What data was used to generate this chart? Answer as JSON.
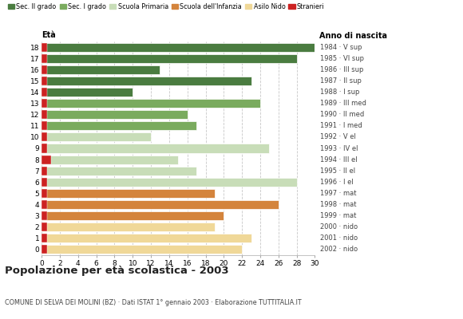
{
  "ages": [
    18,
    17,
    16,
    15,
    14,
    13,
    12,
    11,
    10,
    9,
    8,
    7,
    6,
    5,
    4,
    3,
    2,
    1,
    0
  ],
  "values": [
    30,
    28,
    13,
    23,
    10,
    24,
    16,
    17,
    12,
    25,
    15,
    17,
    28,
    19,
    26,
    20,
    19,
    23,
    22
  ],
  "stranieri_vals": [
    0.6,
    0.6,
    0.6,
    0.6,
    0.6,
    0.6,
    0.6,
    0.6,
    0.6,
    0.6,
    1.0,
    0.6,
    0.6,
    0.6,
    0.6,
    0.6,
    0.6,
    0.6,
    0.6
  ],
  "categories": [
    "Sec. II grado",
    "Sec. I grado",
    "Scuola Primaria",
    "Scuola dell'Infanzia",
    "Asilo Nido",
    "Stranieri"
  ],
  "colors": {
    "Sec. II grado": "#4a7c40",
    "Sec. I grado": "#7aab5e",
    "Scuola Primaria": "#c8ddb8",
    "Scuola dell'Infanzia": "#d4843c",
    "Asilo Nido": "#f0d898",
    "Stranieri": "#cc2222"
  },
  "age_colors": {
    "18": "Sec. II grado",
    "17": "Sec. II grado",
    "16": "Sec. II grado",
    "15": "Sec. II grado",
    "14": "Sec. II grado",
    "13": "Sec. I grado",
    "12": "Sec. I grado",
    "11": "Sec. I grado",
    "10": "Scuola Primaria",
    "9": "Scuola Primaria",
    "8": "Scuola Primaria",
    "7": "Scuola Primaria",
    "6": "Scuola Primaria",
    "5": "Scuola dell'Infanzia",
    "4": "Scuola dell'Infanzia",
    "3": "Scuola dell'Infanzia",
    "2": "Asilo Nido",
    "1": "Asilo Nido",
    "0": "Asilo Nido"
  },
  "right_labels": {
    "18": "1984 · V sup",
    "17": "1985 · VI sup",
    "16": "1986 · III sup",
    "15": "1987 · II sup",
    "14": "1988 · I sup",
    "13": "1989 · III med",
    "12": "1990 · II med",
    "11": "1991 · I med",
    "10": "1992 · V el",
    "9": "1993 · IV el",
    "8": "1994 · III el",
    "7": "1995 · II el",
    "6": "1996 · I el",
    "5": "1997 · mat",
    "4": "1998 · mat",
    "3": "1999 · mat",
    "2": "2000 · nido",
    "1": "2001 · nido",
    "0": "2002 · nido"
  },
  "title": "Popolazione per età scolastica - 2003",
  "subtitle": "COMUNE DI SELVA DEI MOLINI (BZ) · Dati ISTAT 1° gennaio 2003 · Elaborazione TUTTITALIA.IT",
  "xlabel_left": "Età",
  "xlabel_right": "Anno di nascita",
  "xlim": [
    0,
    30
  ],
  "xticks": [
    0,
    2,
    4,
    6,
    8,
    10,
    12,
    14,
    16,
    18,
    20,
    22,
    24,
    26,
    28,
    30
  ],
  "background_color": "#ffffff",
  "grid_color": "#c8c8c8"
}
